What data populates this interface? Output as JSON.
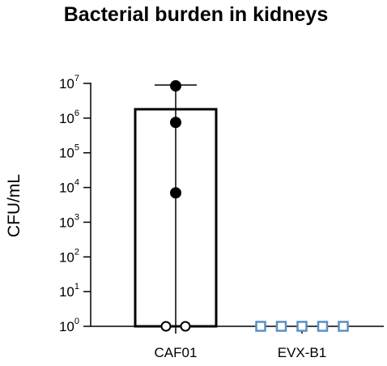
{
  "chart_data": {
    "type": "bar",
    "title": "Bacterial burden in kidneys",
    "ylabel": "CFU/mL",
    "xlabel": "",
    "y_scale": "log",
    "ylim": [
      1,
      10000000
    ],
    "y_ticks": [
      {
        "base": "10",
        "exp": "0",
        "value": 1
      },
      {
        "base": "10",
        "exp": "1",
        "value": 10
      },
      {
        "base": "10",
        "exp": "2",
        "value": 100
      },
      {
        "base": "10",
        "exp": "3",
        "value": 1000
      },
      {
        "base": "10",
        "exp": "4",
        "value": 10000
      },
      {
        "base": "10",
        "exp": "5",
        "value": 100000
      },
      {
        "base": "10",
        "exp": "6",
        "value": 1000000
      },
      {
        "base": "10",
        "exp": "7",
        "value": 10000000
      }
    ],
    "categories": [
      "CAF01",
      "EVX-B1"
    ],
    "bars": [
      {
        "category": "CAF01",
        "mean": 1800000,
        "error_lower": 1,
        "error_upper": 9000000
      },
      {
        "category": "EVX-B1",
        "mean": 1
      }
    ],
    "points": [
      {
        "category": "CAF01",
        "values": [
          8500000,
          750000,
          7000,
          1,
          1
        ],
        "filled": [
          true,
          true,
          true,
          false,
          false
        ]
      },
      {
        "category": "EVX-B1",
        "values": [
          1,
          1,
          1,
          1,
          1
        ],
        "marker": "square"
      }
    ],
    "colors": {
      "axis": "#000000",
      "filled_point": "#000000",
      "evx_marker": "#5b8fc4"
    }
  }
}
